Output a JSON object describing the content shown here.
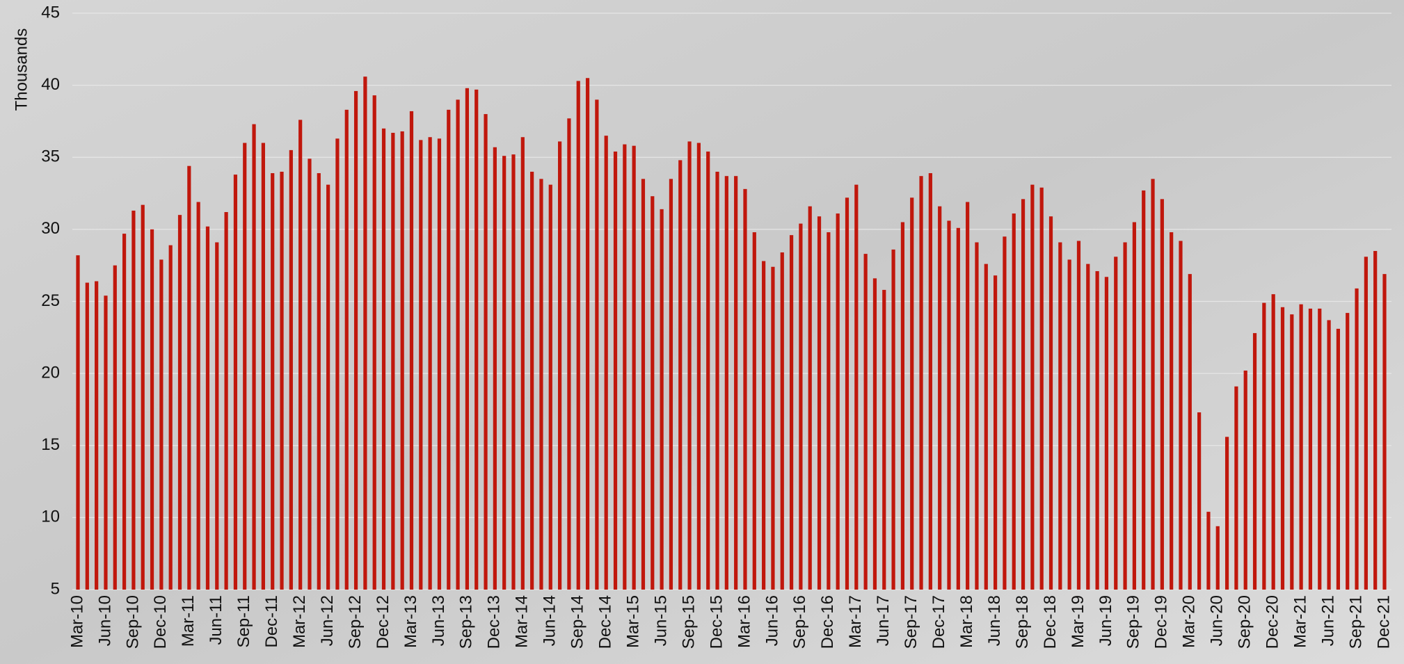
{
  "chart_data": {
    "type": "bar",
    "y_label": "Thousands",
    "color": "#c0170c",
    "grid": true,
    "ylim": [
      5,
      45
    ],
    "yticks": [
      5,
      10,
      15,
      20,
      25,
      30,
      35,
      40,
      45
    ],
    "categories": [
      "Mar-10",
      null,
      null,
      "Jun-10",
      null,
      null,
      "Sep-10",
      null,
      null,
      "Dec-10",
      null,
      null,
      "Mar-11",
      null,
      null,
      "Jun-11",
      null,
      null,
      "Sep-11",
      null,
      null,
      "Dec-11",
      null,
      null,
      "Mar-12",
      null,
      null,
      "Jun-12",
      null,
      null,
      "Sep-12",
      null,
      null,
      "Dec-12",
      null,
      null,
      "Mar-13",
      null,
      null,
      "Jun-13",
      null,
      null,
      "Sep-13",
      null,
      null,
      "Dec-13",
      null,
      null,
      "Mar-14",
      null,
      null,
      "Jun-14",
      null,
      null,
      "Sep-14",
      null,
      null,
      "Dec-14",
      null,
      null,
      "Mar-15",
      null,
      null,
      "Jun-15",
      null,
      null,
      "Sep-15",
      null,
      null,
      "Dec-15",
      null,
      null,
      "Mar-16",
      null,
      null,
      "Jun-16",
      null,
      null,
      "Sep-16",
      null,
      null,
      "Dec-16",
      null,
      null,
      "Mar-17",
      null,
      null,
      "Jun-17",
      null,
      null,
      "Sep-17",
      null,
      null,
      "Dec-17",
      null,
      null,
      "Mar-18",
      null,
      null,
      "Jun-18",
      null,
      null,
      "Sep-18",
      null,
      null,
      "Dec-18",
      null,
      null,
      "Mar-19",
      null,
      null,
      "Jun-19",
      null,
      null,
      "Sep-19",
      null,
      null,
      "Dec-19",
      null,
      null,
      "Mar-20",
      null,
      null,
      "Jun-20",
      null,
      null,
      "Sep-20",
      null,
      null,
      "Dec-20",
      null,
      null,
      "Mar-21",
      null,
      null,
      "Jun-21",
      null,
      null,
      "Sep-21",
      null,
      null,
      "Dec-21"
    ],
    "values": [
      28.2,
      26.3,
      26.4,
      25.4,
      27.5,
      29.7,
      31.3,
      31.7,
      30.0,
      27.9,
      28.9,
      31.0,
      34.4,
      31.9,
      30.2,
      29.1,
      31.2,
      33.8,
      36.0,
      37.3,
      36.0,
      33.9,
      34.0,
      35.5,
      37.6,
      34.9,
      33.9,
      33.1,
      36.3,
      38.3,
      39.6,
      40.6,
      39.3,
      37.0,
      36.7,
      36.8,
      38.2,
      36.2,
      36.4,
      36.3,
      38.3,
      39.0,
      39.8,
      39.7,
      38.0,
      35.7,
      35.1,
      35.2,
      36.4,
      34.0,
      33.5,
      33.1,
      36.1,
      37.7,
      40.3,
      40.5,
      39.0,
      36.5,
      35.4,
      35.9,
      35.8,
      33.5,
      32.3,
      31.4,
      33.5,
      34.8,
      36.1,
      36.0,
      35.4,
      34.0,
      33.7,
      33.7,
      32.8,
      29.8,
      27.8,
      27.4,
      28.4,
      29.6,
      30.4,
      31.6,
      30.9,
      29.8,
      31.1,
      32.2,
      33.1,
      28.3,
      26.6,
      25.8,
      28.6,
      30.5,
      32.2,
      33.7,
      33.9,
      31.6,
      30.6,
      30.1,
      31.9,
      29.1,
      27.6,
      26.8,
      29.5,
      31.1,
      32.1,
      33.1,
      32.9,
      30.9,
      29.1,
      27.9,
      29.2,
      27.6,
      27.1,
      26.7,
      28.1,
      29.1,
      30.5,
      32.7,
      33.5,
      32.1,
      29.8,
      29.2,
      26.9,
      17.3,
      10.4,
      9.4,
      15.6,
      19.1,
      20.2,
      22.8,
      24.9,
      25.5,
      24.6,
      24.1,
      24.8,
      24.5,
      24.5,
      23.7,
      23.1,
      24.2,
      25.9,
      28.1,
      28.5,
      26.9
    ]
  }
}
